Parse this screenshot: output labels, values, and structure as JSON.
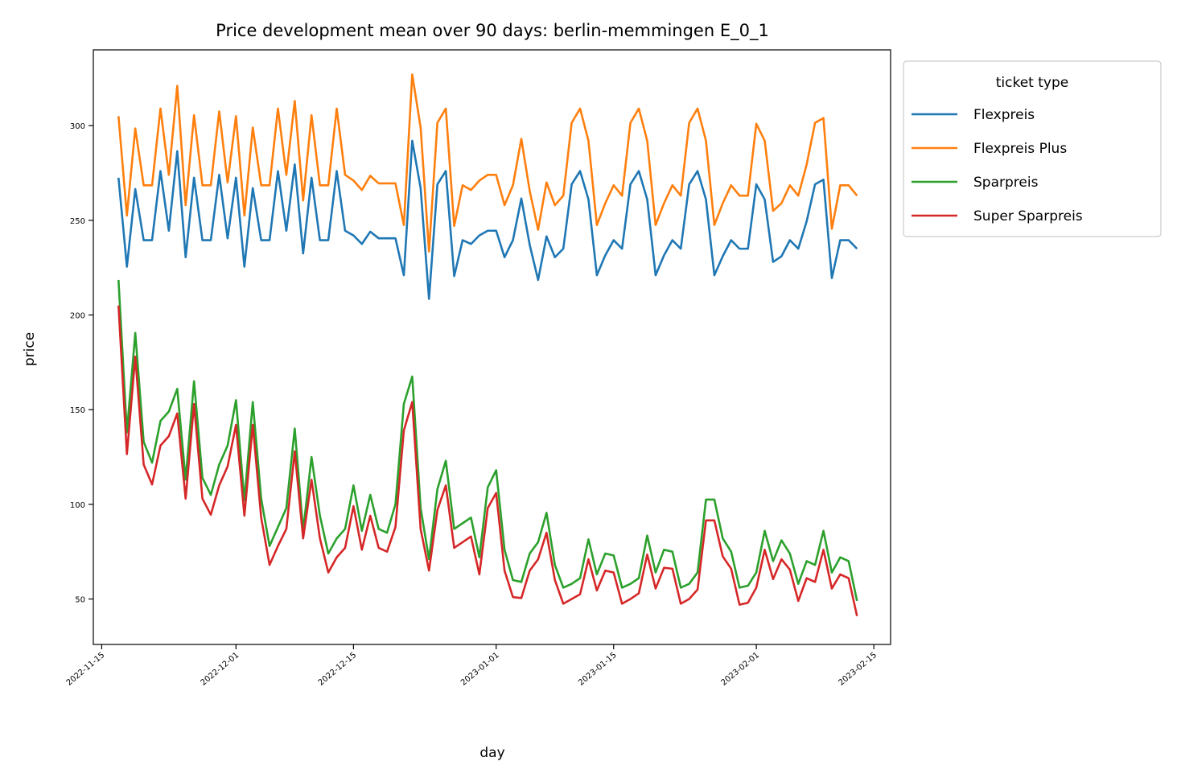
{
  "chart_data": {
    "type": "line",
    "title": "Price development mean over 90 days: berlin-memmingen E_0_1",
    "xlabel": "day",
    "ylabel": "price",
    "legend_title": "ticket type",
    "legend_position": "outside-top-right",
    "grid": false,
    "x_start": "2022-11-17",
    "x_end": "2023-02-14",
    "xlim": [
      "2022-11-14",
      "2023-02-17"
    ],
    "ylim": [
      26,
      340
    ],
    "x_ticks": [
      "2022-11-15",
      "2022-12-01",
      "2022-12-15",
      "2023-01-01",
      "2023-01-15",
      "2023-02-01",
      "2023-02-15"
    ],
    "y_ticks": [
      50,
      100,
      150,
      200,
      250,
      300
    ],
    "series": [
      {
        "name": "Flexpreis",
        "color": "#1f77b4",
        "values": [
          272.5,
          225.5,
          266.5,
          239.5,
          239.5,
          276,
          244.5,
          286.5,
          230.5,
          272.5,
          239.5,
          239.5,
          274,
          240.5,
          272.5,
          225.5,
          267,
          239.5,
          239.5,
          276,
          244.5,
          279.5,
          232.5,
          272.5,
          239.5,
          239.5,
          276,
          244.5,
          242,
          237.5,
          244,
          240.5,
          240.5,
          240.5,
          221,
          292,
          267,
          208.5,
          269,
          276,
          220.5,
          239.5,
          237.5,
          242,
          244.5,
          244.5,
          230.5,
          239.5,
          261.5,
          237,
          218.5,
          241.5,
          230.5,
          235,
          269,
          276,
          261,
          221,
          231.5,
          239.5,
          235,
          269,
          276,
          261,
          221,
          231.5,
          239.5,
          235,
          269,
          276,
          261,
          221,
          231,
          239.5,
          235,
          235,
          269,
          261,
          228,
          231,
          239.5,
          235,
          249.5,
          269,
          271.5,
          219.5,
          239.5,
          239.5,
          235
        ]
      },
      {
        "name": "Flexpreis Plus",
        "color": "#ff7f0e",
        "values": [
          305,
          252.5,
          298.5,
          268.5,
          268.5,
          309,
          274,
          321,
          258,
          305.5,
          268.5,
          268.5,
          307.5,
          270,
          305,
          252.5,
          299,
          268.5,
          268.5,
          309,
          274,
          313,
          260.5,
          305.5,
          268.5,
          268.5,
          309,
          274,
          271,
          266,
          273.5,
          269.5,
          269.5,
          269.5,
          247.5,
          327,
          299,
          233.5,
          301.5,
          309,
          247,
          268.5,
          266,
          271,
          274,
          274,
          258,
          268.5,
          293,
          265.5,
          245,
          270,
          258,
          263,
          301.5,
          309,
          292,
          247.5,
          259,
          268.5,
          263,
          301.5,
          309,
          292,
          247.5,
          259,
          268.5,
          263,
          301.5,
          309,
          292,
          247.5,
          259,
          268.5,
          263,
          263,
          301,
          292,
          255,
          259,
          268.5,
          263,
          279.5,
          301.5,
          304,
          245.5,
          268.5,
          268.5,
          263
        ]
      },
      {
        "name": "Sparpreis",
        "color": "#2ca02c",
        "values": [
          218.5,
          138,
          190.5,
          133,
          122,
          144,
          149,
          161,
          113,
          165,
          114,
          105,
          121,
          131,
          155,
          102,
          154,
          103,
          78,
          88,
          98,
          140,
          86,
          125,
          94,
          74,
          82,
          87,
          110,
          86,
          105,
          87,
          85,
          100,
          153,
          167.5,
          98,
          71,
          108,
          123,
          87,
          90,
          93,
          72,
          109,
          118,
          76,
          60,
          59,
          74,
          80,
          95.5,
          68,
          56,
          58,
          61,
          81.5,
          63,
          74,
          73,
          56,
          58,
          61,
          83.5,
          64,
          76,
          75,
          56,
          58,
          64,
          102.5,
          102.5,
          82,
          75,
          56,
          57,
          64,
          86,
          70,
          81,
          74,
          58,
          70,
          68,
          86,
          64,
          72,
          70,
          49
        ]
      },
      {
        "name": "Super Sparpreis",
        "color": "#d62728",
        "values": [
          205,
          126.5,
          178,
          121,
          110.5,
          131,
          136,
          148,
          103,
          153,
          103,
          94.5,
          110,
          120,
          142,
          94,
          142,
          93,
          68,
          78,
          87,
          128,
          82,
          113,
          82,
          64,
          72,
          77,
          99,
          76,
          94,
          77,
          75,
          88,
          139,
          154,
          87,
          65,
          97,
          110,
          77,
          80,
          83,
          63,
          98,
          106,
          65,
          51,
          50.5,
          65,
          71,
          85,
          60,
          47.5,
          50,
          52.5,
          71,
          54.5,
          65,
          64,
          47.5,
          50,
          53,
          73.5,
          55.5,
          66.5,
          66,
          47.5,
          50,
          55,
          91.5,
          91.5,
          72.5,
          66,
          47,
          48,
          56,
          76,
          60.5,
          71,
          65.5,
          49,
          61,
          59,
          76,
          55.5,
          63,
          61,
          41
        ]
      }
    ]
  }
}
